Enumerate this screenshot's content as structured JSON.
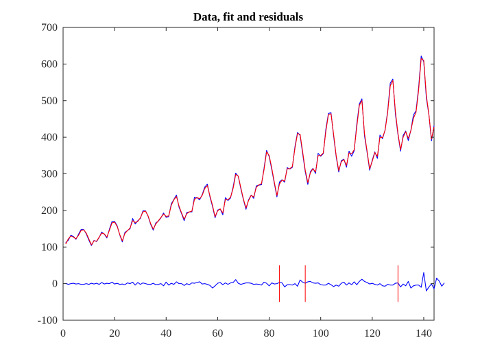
{
  "chart_data": {
    "type": "line",
    "title": "Data, fit and residuals",
    "xlabel": "",
    "ylabel": "",
    "xlim": [
      0,
      144
    ],
    "ylim": [
      -100,
      700
    ],
    "xticks": [
      0,
      20,
      40,
      60,
      80,
      100,
      120,
      140
    ],
    "yticks": [
      -100,
      0,
      100,
      200,
      300,
      400,
      500,
      600,
      700
    ],
    "grid": false,
    "legend": "none",
    "colors": {
      "data": "#0000ff",
      "fit": "#ff0000",
      "residuals": "#0000ff",
      "markers": "#ff0000",
      "axes": "#262626"
    },
    "series": [
      {
        "key": "data",
        "values": [
          112,
          118,
          132,
          129,
          121,
          135,
          148,
          148,
          136,
          119,
          104,
          118,
          115,
          126,
          141,
          135,
          125,
          149,
          170,
          170,
          158,
          133,
          114,
          140,
          145,
          150,
          178,
          163,
          172,
          178,
          199,
          199,
          184,
          162,
          146,
          166,
          171,
          180,
          193,
          181,
          183,
          218,
          230,
          242,
          209,
          191,
          172,
          194,
          196,
          196,
          236,
          235,
          229,
          243,
          264,
          272,
          237,
          211,
          180,
          201,
          204,
          188,
          235,
          227,
          234,
          264,
          302,
          293,
          259,
          229,
          203,
          229,
          242,
          233,
          267,
          269,
          270,
          315,
          364,
          347,
          312,
          274,
          237,
          278,
          284,
          277,
          317,
          313,
          318,
          374,
          413,
          405,
          355,
          306,
          271,
          306,
          315,
          301,
          356,
          348,
          355,
          422,
          465,
          467,
          404,
          347,
          305,
          336,
          340,
          318,
          362,
          348,
          363,
          435,
          491,
          505,
          404,
          359,
          310,
          337,
          360,
          342,
          406,
          396,
          420,
          472,
          548,
          559,
          463,
          407,
          362,
          405,
          417,
          391,
          419,
          461,
          472,
          535,
          622,
          606,
          508,
          461,
          390,
          432
        ]
      },
      {
        "key": "fit",
        "values": [
          108,
          122,
          130,
          127,
          123,
          132,
          145,
          147,
          138,
          122,
          106,
          117,
          116,
          127,
          138,
          136,
          127,
          146,
          166,
          168,
          156,
          134,
          117,
          137,
          145,
          152,
          172,
          167,
          170,
          180,
          196,
          198,
          185,
          164,
          149,
          163,
          172,
          181,
          190,
          184,
          185,
          214,
          229,
          238,
          212,
          193,
          176,
          191,
          196,
          198,
          230,
          235,
          232,
          241,
          260,
          268,
          240,
          214,
          183,
          199,
          204,
          193,
          230,
          229,
          236,
          260,
          298,
          294,
          262,
          231,
          207,
          227,
          241,
          237,
          263,
          270,
          273,
          311,
          360,
          350,
          316,
          277,
          241,
          272,
          283,
          280,
          314,
          314,
          320,
          370,
          410,
          408,
          360,
          310,
          276,
          303,
          314,
          305,
          350,
          350,
          357,
          416,
          462,
          464,
          408,
          350,
          309,
          333,
          339,
          323,
          357,
          355,
          366,
          428,
          487,
          500,
          410,
          362,
          314,
          334,
          358,
          348,
          400,
          399,
          419,
          468,
          540,
          555,
          470,
          410,
          366,
          400,
          415,
          397,
          418,
          452,
          468,
          528,
          615,
          610,
          515,
          462,
          395,
          428
        ]
      },
      {
        "key": "residuals",
        "values": [
          1,
          -2,
          0,
          1,
          -1,
          0,
          -2,
          -2,
          0,
          -2,
          1,
          -1,
          1,
          -2,
          3,
          -1,
          1,
          0,
          4,
          -1,
          1,
          -2,
          -1,
          -3,
          2,
          0,
          4,
          -4,
          3,
          -2,
          2,
          0,
          -2,
          -2,
          1,
          -3,
          -2,
          0,
          -6,
          4,
          -4,
          1,
          -2,
          5,
          0,
          0,
          -5,
          0,
          -3,
          2,
          1,
          3,
          5,
          -1,
          0,
          -2,
          -5,
          -12,
          -6,
          1,
          3,
          -3,
          2,
          -2,
          2,
          3,
          11,
          1,
          -2,
          0,
          2,
          2,
          1,
          -2,
          -1,
          -2,
          -4,
          4,
          1,
          -6,
          2,
          -1,
          0,
          3,
          2,
          -9,
          -3,
          -3,
          -4,
          0,
          -7,
          10,
          4,
          1,
          5,
          6,
          2,
          1,
          2,
          -3,
          -4,
          -4,
          1,
          -3,
          -8,
          -4,
          -7,
          1,
          4,
          -4,
          2,
          -3,
          5,
          -3,
          6,
          12,
          6,
          3,
          -1,
          1,
          -2,
          -4,
          0,
          -6,
          -7,
          -2,
          -4,
          -4,
          1,
          2,
          -9,
          -1,
          -6,
          6,
          -12,
          -6,
          -4,
          -4,
          -10,
          30,
          -20,
          -9,
          -1,
          -14,
          15,
          7,
          -7,
          2
        ]
      },
      {
        "key": "markers",
        "x": [
          84,
          94,
          130
        ],
        "ymin": -50,
        "ymax": 50
      }
    ]
  }
}
